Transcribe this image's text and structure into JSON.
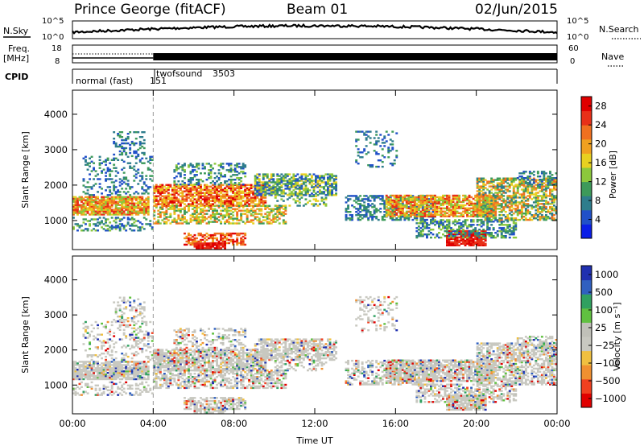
{
  "header": {
    "station": "Prince George (fitACF)",
    "beam": "Beam 01",
    "date": "02/Jun/2015"
  },
  "top_panels": {
    "nsky_label": "N.Sky",
    "nsearch_label": "N.Search",
    "nsky_ticks": [
      "10^5",
      "10^0"
    ],
    "nsearch_ticks": [
      "10^5",
      "10^0"
    ],
    "freq_label_1": "Freq.",
    "freq_label_2": "[MHz]",
    "freq_ticks": [
      "18",
      "8"
    ],
    "nave_label": "Nave",
    "nave_ticks": [
      "60",
      "0"
    ],
    "cpid_label": "CPID",
    "cpid_mode_1": "normal (fast)",
    "cpid_code_1": "151",
    "cpid_mode_2": "twofsound",
    "cpid_code_2": "3503"
  },
  "colors": {
    "power_scale": [
      "#0a1ee6",
      "#2050c8",
      "#2e7d8c",
      "#3d9a5a",
      "#8cc83c",
      "#e8d020",
      "#f0a020",
      "#f07020",
      "#e83018",
      "#e00000"
    ],
    "velocity_scale": [
      "#e00000",
      "#f04020",
      "#f09030",
      "#f0c040",
      "#c8c8c0",
      "#c0c0b8",
      "#60c040",
      "#30a060",
      "#3060c0",
      "#2030b0"
    ],
    "ground_scatter": "#c8c8c0"
  },
  "chart_data": [
    {
      "type": "heatmap",
      "panel": "power",
      "xlabel": "",
      "ylabel": "Slant Range [km]",
      "x_ticks": [
        "00:00",
        "04:00",
        "08:00",
        "12:00",
        "16:00",
        "20:00",
        "00:00"
      ],
      "y_ticks": [
        "1000",
        "2000",
        "3000",
        "4000"
      ],
      "xlim_hours": [
        0,
        24
      ],
      "ylim_km": [
        180,
        4680
      ],
      "colorbar_label": "Power [dB]",
      "colorbar_ticks": [
        "4",
        "8",
        "12",
        "16",
        "20",
        "24",
        "28"
      ],
      "colorbar_range": [
        0,
        30
      ],
      "marker_hour": 4
    },
    {
      "type": "heatmap",
      "panel": "velocity",
      "xlabel": "Time UT",
      "ylabel": "Slant Range [km]",
      "x_ticks": [
        "00:00",
        "04:00",
        "08:00",
        "12:00",
        "16:00",
        "20:00",
        "00:00"
      ],
      "y_ticks": [
        "1000",
        "2000",
        "3000",
        "4000"
      ],
      "xlim_hours": [
        0,
        24
      ],
      "ylim_km": [
        180,
        4680
      ],
      "colorbar_label": "Velocity [m s⁻¹]",
      "colorbar_ticks": [
        "1000",
        "500",
        "100",
        "25",
        "−25",
        "−100",
        "−500",
        "−1000"
      ],
      "marker_hour": 4
    }
  ]
}
